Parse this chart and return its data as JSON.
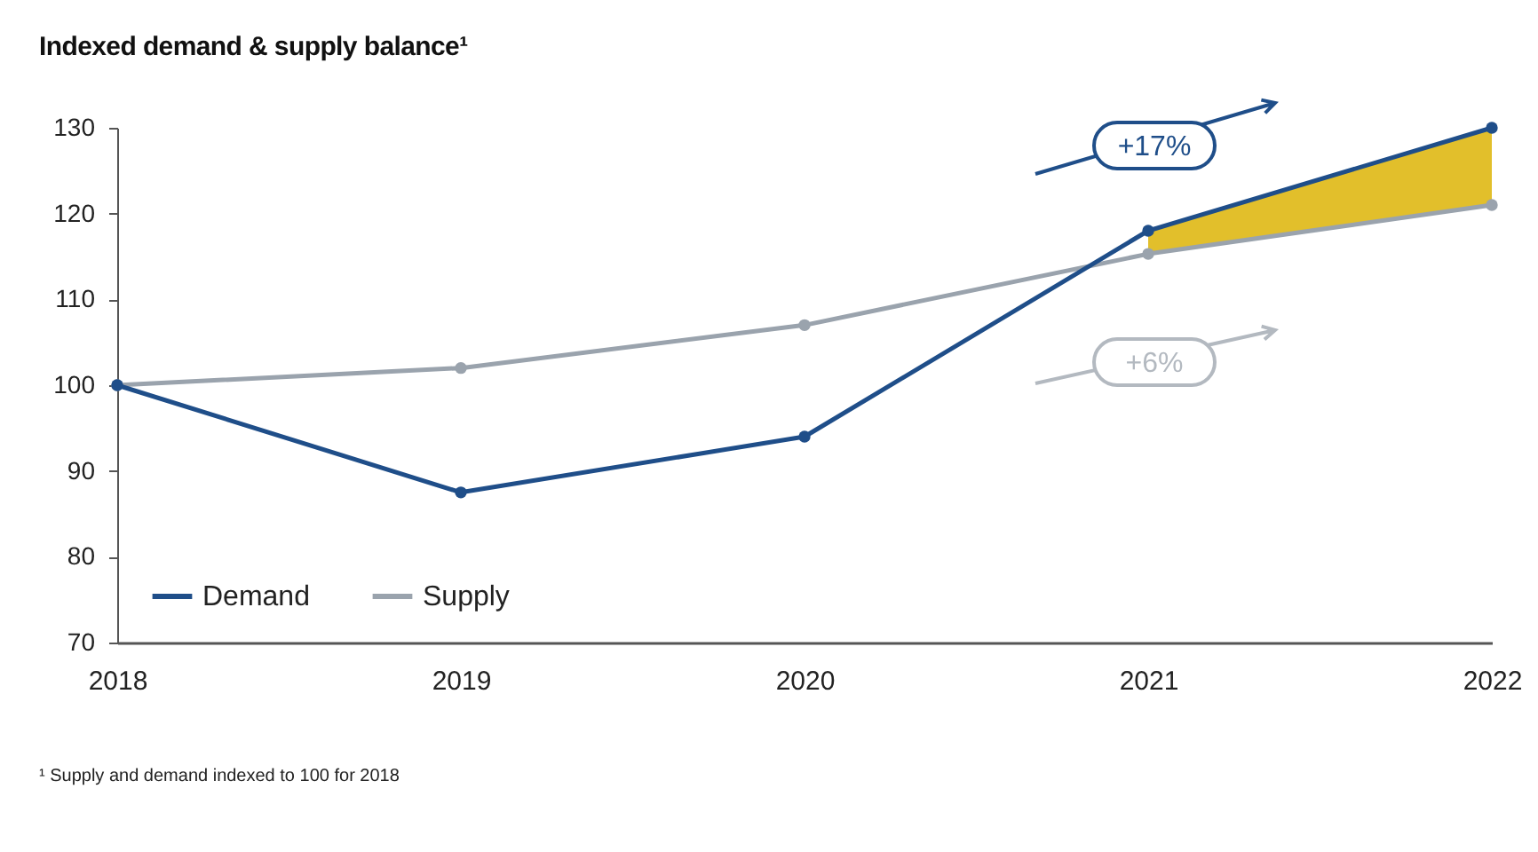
{
  "chart_data": {
    "type": "line",
    "title": "Indexed demand & supply balance¹",
    "categories": [
      "2018",
      "2019",
      "2020",
      "2021",
      "2022"
    ],
    "series": [
      {
        "name": "Demand",
        "color": "#1f4e89",
        "values": [
          100,
          87.5,
          94,
          118,
          130
        ],
        "lower": [
          null,
          null,
          null,
          115.3,
          121
        ],
        "upper": [
          null,
          null,
          null,
          118,
          130
        ]
      },
      {
        "name": "Supply",
        "color": "#9aa3ad",
        "values": [
          100,
          102,
          107,
          115.3,
          121
        ]
      }
    ],
    "ylim": [
      70,
      130
    ],
    "yticks": [
      70,
      80,
      90,
      100,
      110,
      120,
      130
    ],
    "annotations": [
      "+17%",
      "+6%",
      "¹ Supply and demand indexed to 100 for 2018"
    ],
    "legend": "bottom left",
    "marker": "circle",
    "line_style": "solid",
    "grid": false
  }
}
